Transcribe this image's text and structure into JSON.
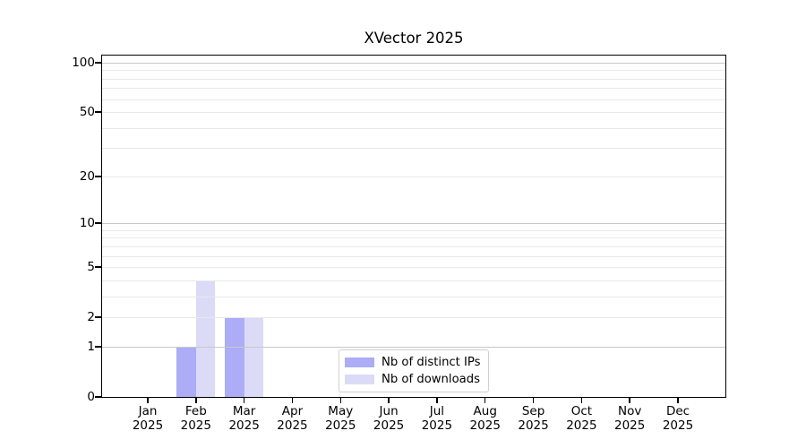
{
  "chart_data": {
    "type": "bar",
    "title": "XVector 2025",
    "x_categories": [
      "Jan",
      "Feb",
      "Mar",
      "Apr",
      "May",
      "Jun",
      "Jul",
      "Aug",
      "Sep",
      "Oct",
      "Nov",
      "Dec"
    ],
    "x_sub_label": "2025",
    "series": [
      {
        "name": "Nb of distinct IPs",
        "color": "#acacf7",
        "values": [
          0,
          1,
          2,
          0,
          0,
          0,
          0,
          0,
          0,
          0,
          0,
          0
        ]
      },
      {
        "name": "Nb of downloads",
        "color": "#dbdbf8",
        "values": [
          0,
          4,
          2,
          0,
          0,
          0,
          0,
          0,
          0,
          0,
          0,
          0
        ]
      }
    ],
    "y_scale": "log1p",
    "y_axis_ticks": [
      0,
      1,
      2,
      5,
      10,
      20,
      50,
      100
    ],
    "y_gridlines_decade": [
      1,
      10,
      100
    ],
    "y_gridlines_light": [
      2,
      3,
      4,
      5,
      6,
      7,
      8,
      9,
      20,
      30,
      40,
      50,
      60,
      70,
      80,
      90
    ],
    "ylim": [
      0,
      112
    ],
    "grid": "horizontal",
    "legend_position": "lower center"
  },
  "colors": {
    "bar_distinct_ips": "#acacf7",
    "bar_downloads": "#dbdbf8",
    "gridline_decade": "#c8c8c8",
    "gridline_light": "#e9e9e9",
    "axis": "#000000",
    "background": "#ffffff",
    "legend_border": "#d0d0d0"
  }
}
